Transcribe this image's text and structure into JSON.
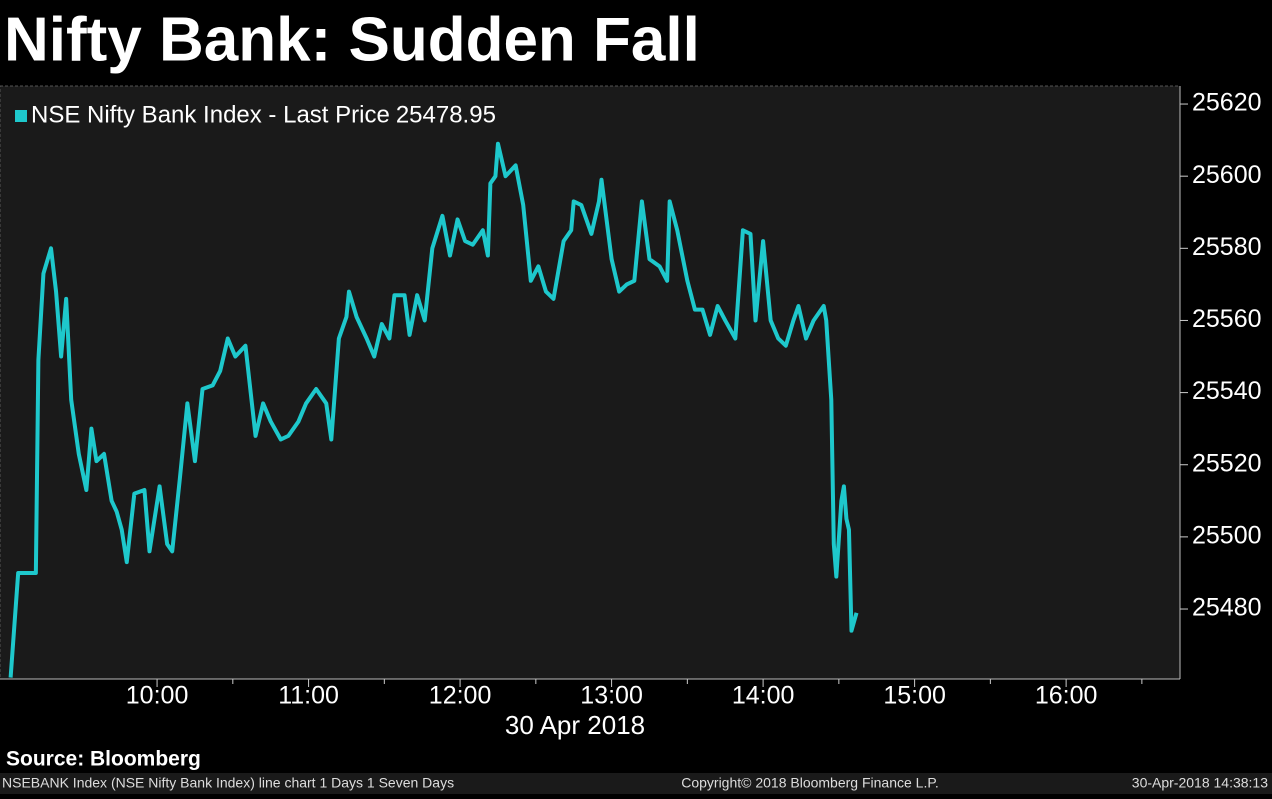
{
  "chart_data": {
    "type": "line",
    "title": "Nifty Bank: Sudden Fall",
    "x_label": "30 Apr 2018",
    "source": "Source: Bloomberg",
    "footer": {
      "left": "NSEBANK Index (NSE Nifty Bank Index) line chart 1 Days 1 Seven Days",
      "center": "Copyright© 2018 Bloomberg Finance L.P.",
      "right": "30-Apr-2018 14:38:13"
    },
    "x": [
      542,
      545,
      552,
      553,
      555,
      558,
      560,
      562,
      564,
      566,
      569,
      572,
      574,
      576,
      579,
      582,
      584,
      586,
      588,
      591,
      595,
      597,
      601,
      604,
      606,
      609,
      612,
      615,
      618,
      622,
      625,
      628,
      631,
      635,
      639,
      642,
      645,
      649,
      652,
      656,
      659,
      663,
      667,
      669,
      672,
      675,
      676,
      679,
      683,
      686,
      689,
      692,
      694,
      698,
      700,
      703,
      706,
      709,
      713,
      716,
      719,
      722,
      725,
      729,
      731,
      732,
      734,
      735,
      738,
      742,
      745,
      748,
      751,
      754,
      757,
      761,
      764,
      765,
      768,
      772,
      775,
      776,
      780,
      783,
      786,
      789,
      792,
      795,
      799,
      802,
      803,
      806,
      810,
      813,
      816,
      819,
      822,
      825,
      829,
      832,
      835,
      837,
      840,
      843,
      846,
      849,
      852,
      854,
      857,
      860,
      864,
      865,
      867,
      868,
      869,
      871,
      872,
      873,
      874,
      875,
      877
    ],
    "series": [
      {
        "name": "NSE Nifty Bank Index - Last Price",
        "color": "#1ec8cc",
        "values": [
          25461,
          25490,
          25490,
          25549,
          25573,
          25580,
          25568,
          25550,
          25566,
          25538,
          25523,
          25513,
          25530,
          25521,
          25523,
          25510,
          25507,
          25502,
          25493,
          25512,
          25513,
          25496,
          25514,
          25498,
          25496,
          25516,
          25537,
          25521,
          25541,
          25542,
          25546,
          25555,
          25550,
          25553,
          25528,
          25537,
          25532,
          25527,
          25528,
          25532,
          25537,
          25541,
          25537,
          25527,
          25555,
          25561,
          25568,
          25561,
          25555,
          25550,
          25559,
          25555,
          25567,
          25567,
          25556,
          25567,
          25560,
          25580,
          25589,
          25578,
          25588,
          25582,
          25581,
          25585,
          25578,
          25598,
          25600,
          25609,
          25600,
          25603,
          25592,
          25571,
          25575,
          25568,
          25566,
          25582,
          25585,
          25593,
          25592,
          25584,
          25593,
          25599,
          25577,
          25568,
          25570,
          25571,
          25593,
          25577,
          25575,
          25571,
          25593,
          25585,
          25571,
          25563,
          25563,
          25556,
          25564,
          25560,
          25555,
          25585,
          25584,
          25560,
          25582,
          25560,
          25555,
          25553,
          25560,
          25564,
          25555,
          25560,
          25564,
          25560,
          25538,
          25498,
          25489,
          25510,
          25514,
          25505,
          25502,
          25474,
          25478.95
        ]
      }
    ],
    "xlim": [
      537.8,
      1005.1
    ],
    "xticks": [
      {
        "value": 600,
        "label": "10:00"
      },
      {
        "value": 660,
        "label": "11:00"
      },
      {
        "value": 720,
        "label": "12:00"
      },
      {
        "value": 780,
        "label": "13:00"
      },
      {
        "value": 840,
        "label": "14:00"
      },
      {
        "value": 900,
        "label": "15:00"
      },
      {
        "value": 960,
        "label": "16:00"
      }
    ],
    "xminorticks": [
      630,
      690,
      750,
      810,
      870,
      930,
      990
    ],
    "ylim": [
      25460.6,
      25625
    ],
    "yticks": [
      25480,
      25500,
      25520,
      25540,
      25560,
      25580,
      25600,
      25620
    ],
    "y_axis_side": "right",
    "grid": false
  }
}
